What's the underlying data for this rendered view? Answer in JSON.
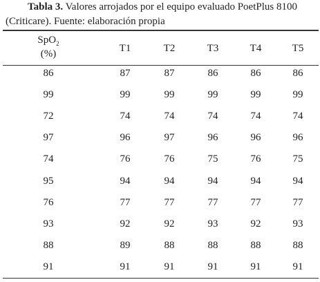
{
  "caption": {
    "label": "Tabla 3.",
    "line1": "Valores arrojados por el equipo evaluado PoetPlus 8100",
    "line2": "(Criticare). Fuente: elaboración propia"
  },
  "table": {
    "header": {
      "first": {
        "main": "SpO",
        "sub": "2",
        "unit": "(%)"
      },
      "rest": [
        "T1",
        "T2",
        "T3",
        "T4",
        "T5"
      ]
    },
    "rows": [
      [
        "86",
        "87",
        "87",
        "86",
        "86",
        "86"
      ],
      [
        "99",
        "99",
        "99",
        "99",
        "99",
        "99"
      ],
      [
        "72",
        "74",
        "74",
        "74",
        "74",
        "74"
      ],
      [
        "97",
        "96",
        "97",
        "96",
        "96",
        "96"
      ],
      [
        "74",
        "76",
        "76",
        "75",
        "76",
        "75"
      ],
      [
        "95",
        "94",
        "94",
        "94",
        "94",
        "94"
      ],
      [
        "76",
        "77",
        "77",
        "77",
        "77",
        "77"
      ],
      [
        "93",
        "92",
        "92",
        "93",
        "92",
        "93"
      ],
      [
        "88",
        "89",
        "88",
        "88",
        "88",
        "88"
      ],
      [
        "91",
        "91",
        "91",
        "91",
        "91",
        "91"
      ]
    ]
  }
}
